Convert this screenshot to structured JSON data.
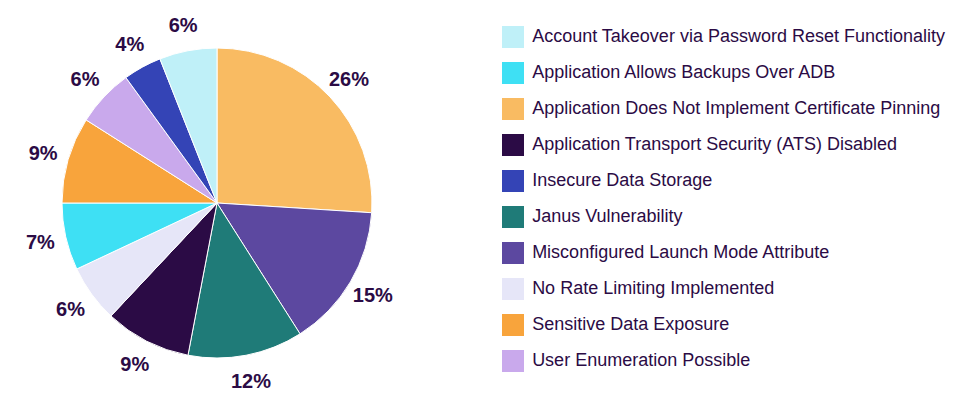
{
  "chart_data": {
    "type": "pie",
    "categories": [
      "Application Does Not Implement Certificate Pinning",
      "Misconfigured Launch Mode Attribute",
      "Janus Vulnerability",
      "Application Transport Security (ATS) Disabled",
      "No Rate Limiting Implemented",
      "Application Allows Backups Over ADB",
      "Sensitive Data Exposure",
      "User Enumeration Possible",
      "Insecure Data Storage",
      "Account Takeover via Password Reset Functionality"
    ],
    "values": [
      26,
      15,
      12,
      9,
      6,
      7,
      9,
      6,
      4,
      6
    ],
    "value_labels": [
      "26%",
      "15%",
      "12%",
      "9%",
      "6%",
      "7%",
      "9%",
      "6%",
      "4%",
      "6%"
    ],
    "colors": [
      "#f9bb62",
      "#5c48a0",
      "#1f7b78",
      "#2b0b45",
      "#e6e6f8",
      "#3ee0f4",
      "#f8a43c",
      "#c9a9ec",
      "#3444b6",
      "#bff0f8"
    ],
    "data_labels": true,
    "legend": "right"
  }
}
